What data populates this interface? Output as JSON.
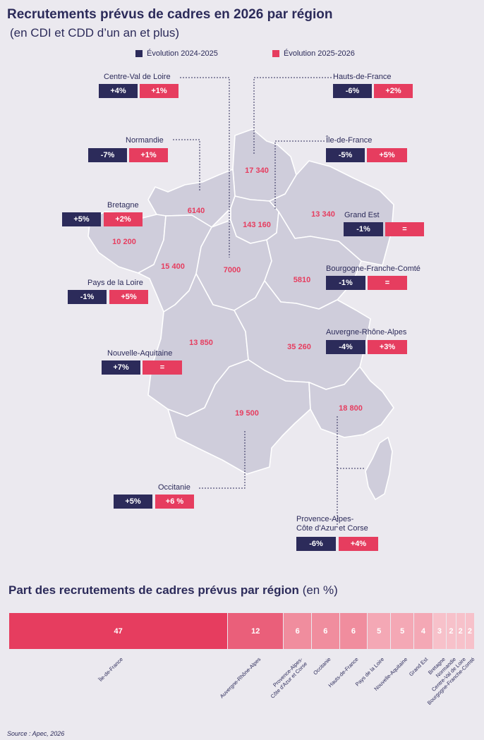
{
  "title": "Recrutements prévus de cadres en 2026 par région",
  "subtitle": "(en CDI et CDD d’un an et plus)",
  "legend": {
    "s1_label": "Évolution 2024-2025",
    "s2_label": "Évolution 2025-2026",
    "s1_color": "#2c2b5a",
    "s2_color": "#e63d5f"
  },
  "regions": [
    {
      "name": "Centre-Val de Loire",
      "value": "7000",
      "value_display": "7000",
      "evol_2024_2025": "+4%",
      "evol_2025_2026": "+1%"
    },
    {
      "name": "Hauts-de-France",
      "value": "17340",
      "value_display": "17 340",
      "evol_2024_2025": "-6%",
      "evol_2025_2026": "+2%"
    },
    {
      "name": "Normandie",
      "value": "6140",
      "value_display": "6140",
      "evol_2024_2025": "-7%",
      "evol_2025_2026": "+1%"
    },
    {
      "name": "Île-de-France",
      "value": "143160",
      "value_display": "143 160",
      "evol_2024_2025": "-5%",
      "evol_2025_2026": "+5%"
    },
    {
      "name": "Bretagne",
      "value": "10200",
      "value_display": "10 200",
      "evol_2024_2025": "+5%",
      "evol_2025_2026": "+2%"
    },
    {
      "name": "Grand Est",
      "value": "13340",
      "value_display": "13 340",
      "evol_2024_2025": "-1%",
      "evol_2025_2026": "="
    },
    {
      "name": "Pays de la Loire",
      "value": "15400",
      "value_display": "15 400",
      "evol_2024_2025": "-1%",
      "evol_2025_2026": "+5%"
    },
    {
      "name": "Bourgogne-Franche-Comté",
      "value": "5810",
      "value_display": "5810",
      "evol_2024_2025": "-1%",
      "evol_2025_2026": "="
    },
    {
      "name": "Auvergne-Rhône-Alpes",
      "value": "35260",
      "value_display": "35 260",
      "evol_2024_2025": "-4%",
      "evol_2025_2026": "+3%"
    },
    {
      "name": "Nouvelle-Aquitaine",
      "value": "13850",
      "value_display": "13 850",
      "evol_2024_2025": "+7%",
      "evol_2025_2026": "="
    },
    {
      "name": "Occitanie",
      "value": "19500",
      "value_display": "19 500",
      "evol_2024_2025": "+5%",
      "evol_2025_2026": "+6 %"
    },
    {
      "name": "Provence-Alpes-\nCôte d'Azur et Corse",
      "value": "18800",
      "value_display": "18 800",
      "evol_2024_2025": "-6%",
      "evol_2025_2026": "+4%"
    }
  ],
  "share_section": {
    "title": "Part des recrutements de cadres prévus par région",
    "unit": "(en %)"
  },
  "chart_data": {
    "type": "bar",
    "stacked": true,
    "title": "Part des recrutements de cadres prévus par région",
    "unit": "(en %)",
    "categories": [
      "Île-de-France",
      "Auvergne-Rhône-Alpes",
      "Provence-Alpes-\nCôte d'Azur et Corse",
      "Occitanie",
      "Hauts-de-France",
      "Pays de la Loire",
      "Nouvelle-Aquitaine",
      "Grand Est",
      "Bretagne",
      "Normandie",
      "Centre-Val de Loire",
      "Bourgogne-Franche-Comté"
    ],
    "values": [
      47,
      12,
      6,
      6,
      6,
      5,
      5,
      4,
      3,
      2,
      2,
      2
    ],
    "colors": [
      "#e63d5f",
      "#ea5f7a",
      "#f08d9e",
      "#f08d9e",
      "#f08d9e",
      "#f4a8b5",
      "#f4a8b5",
      "#f4a8b5",
      "#f7c1ca",
      "#f7c1ca",
      "#f7c1ca",
      "#f7c1ca"
    ]
  },
  "source": "Source : Apec, 2026"
}
